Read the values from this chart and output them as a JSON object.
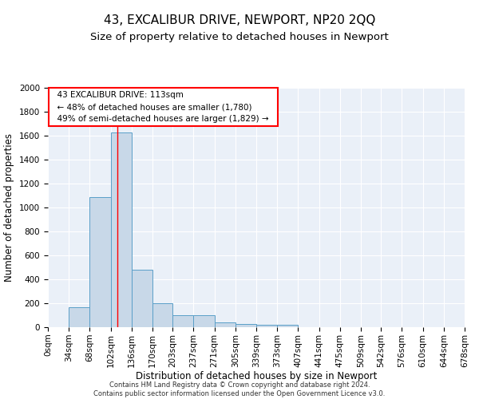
{
  "title": "43, EXCALIBUR DRIVE, NEWPORT, NP20 2QQ",
  "subtitle": "Size of property relative to detached houses in Newport",
  "xlabel": "Distribution of detached houses by size in Newport",
  "ylabel": "Number of detached properties",
  "footer_line1": "Contains HM Land Registry data © Crown copyright and database right 2024.",
  "footer_line2": "Contains public sector information licensed under the Open Government Licence v3.0.",
  "bin_edges": [
    0,
    34,
    68,
    102,
    136,
    170,
    203,
    237,
    271,
    305,
    339,
    373,
    407,
    441,
    475,
    509,
    542,
    576,
    610,
    644,
    678
  ],
  "bar_heights": [
    0,
    165,
    1090,
    1630,
    480,
    200,
    100,
    100,
    40,
    25,
    20,
    20,
    0,
    0,
    0,
    0,
    0,
    0,
    0,
    0
  ],
  "bar_color": "#c8d8e8",
  "bar_edge_color": "#5a9fc8",
  "red_line_x": 113,
  "ylim": [
    0,
    2000
  ],
  "yticks": [
    0,
    200,
    400,
    600,
    800,
    1000,
    1200,
    1400,
    1600,
    1800,
    2000
  ],
  "annotation_title": "43 EXCALIBUR DRIVE: 113sqm",
  "annotation_line1": "← 48% of detached houses are smaller (1,780)",
  "annotation_line2": "49% of semi-detached houses are larger (1,829) →",
  "plot_bg_color": "#eaf0f8",
  "title_fontsize": 11,
  "subtitle_fontsize": 9.5,
  "axis_label_fontsize": 8.5,
  "tick_fontsize": 7.5,
  "annotation_fontsize": 7.5,
  "footer_fontsize": 6.0
}
